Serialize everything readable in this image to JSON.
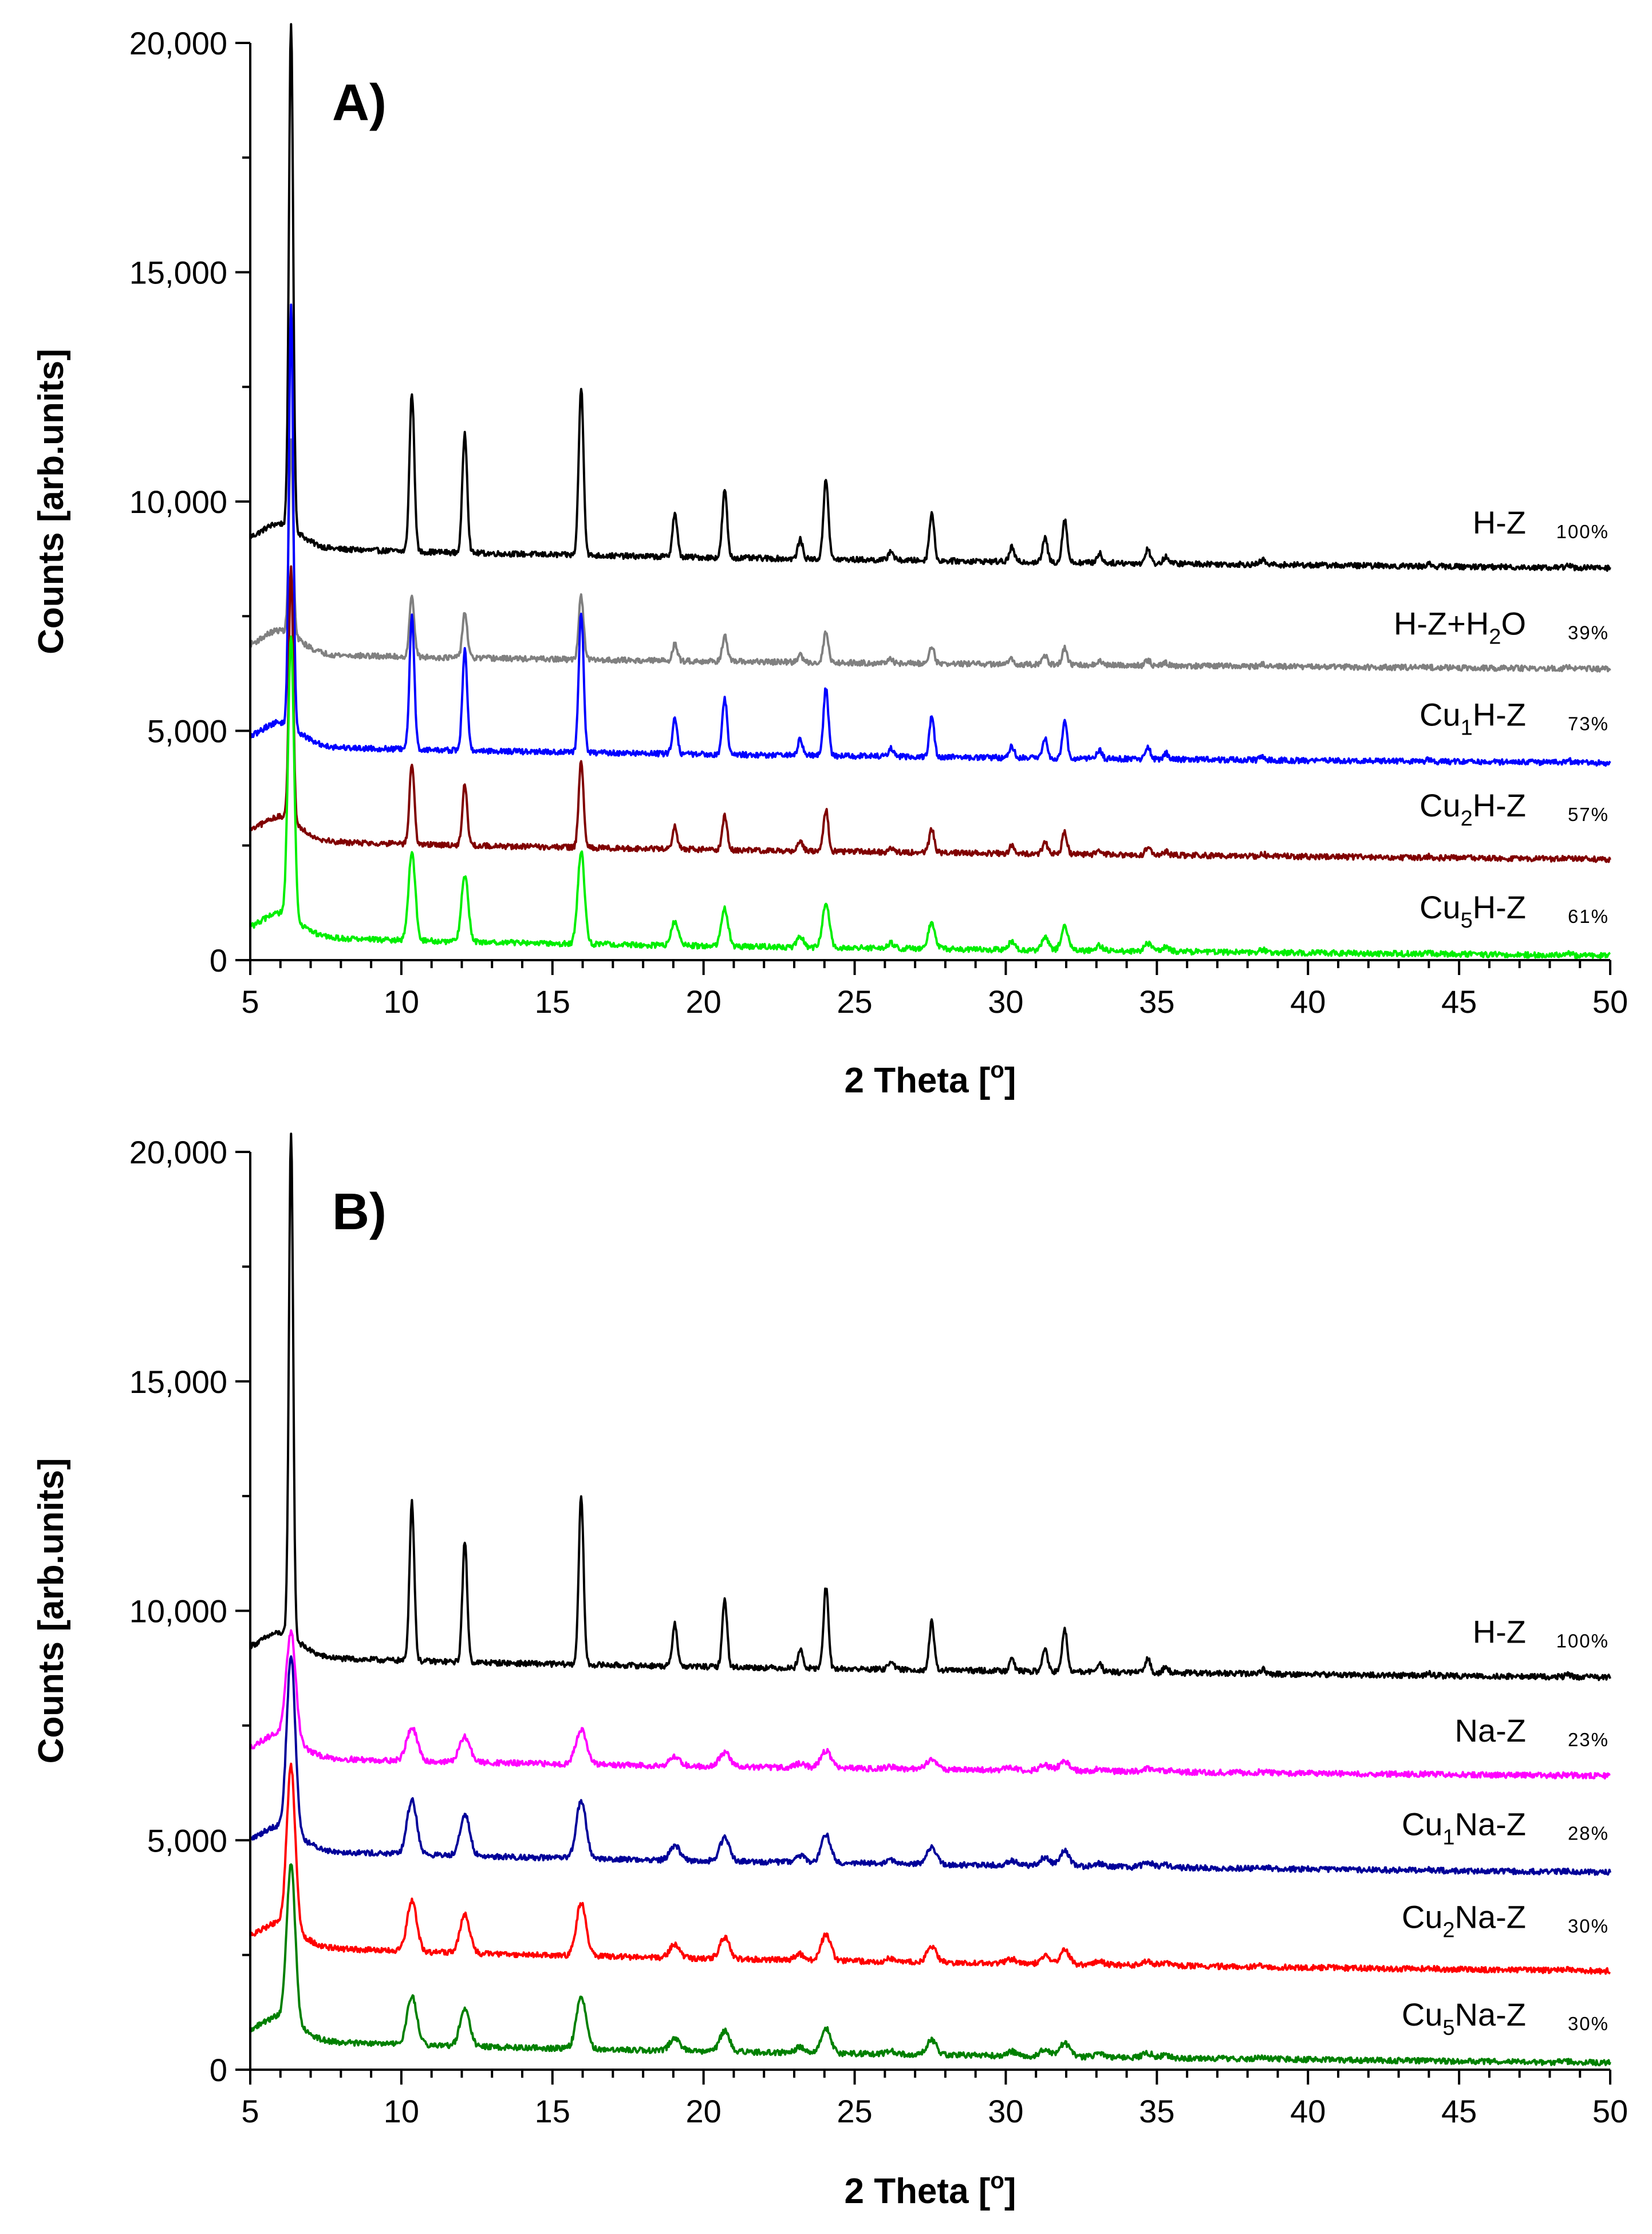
{
  "chart_data": [
    {
      "type": "line",
      "panel_label": "A)",
      "xlabel_main": "2 Theta [",
      "xlabel_sup": "o",
      "xlabel_end": "]",
      "ylabel": "Counts [arb.units]",
      "xlim": [
        5,
        50
      ],
      "ylim": [
        0,
        20000
      ],
      "x_ticks": [
        "5",
        "10",
        "15",
        "20",
        "25",
        "30",
        "35",
        "40",
        "45",
        "50"
      ],
      "y_ticks": [
        "0",
        "5,000",
        "10,000",
        "15,000",
        "20,000"
      ],
      "peaks": [
        {
          "x": 6.35,
          "rel": 1.0,
          "w": 0.07
        },
        {
          "x": 10.35,
          "rel": 0.33,
          "w": 0.08
        },
        {
          "x": 12.1,
          "rel": 0.25,
          "w": 0.08
        },
        {
          "x": 15.95,
          "rel": 0.35,
          "w": 0.08
        },
        {
          "x": 19.05,
          "rel": 0.09,
          "w": 0.08
        },
        {
          "x": 20.7,
          "rel": 0.14,
          "w": 0.08
        },
        {
          "x": 23.2,
          "rel": 0.04,
          "w": 0.08
        },
        {
          "x": 24.05,
          "rel": 0.17,
          "w": 0.08
        },
        {
          "x": 26.2,
          "rel": 0.02,
          "w": 0.08
        },
        {
          "x": 27.55,
          "rel": 0.1,
          "w": 0.08
        },
        {
          "x": 30.2,
          "rel": 0.03,
          "w": 0.08
        },
        {
          "x": 31.3,
          "rel": 0.05,
          "w": 0.08
        },
        {
          "x": 31.95,
          "rel": 0.09,
          "w": 0.08
        },
        {
          "x": 33.1,
          "rel": 0.02,
          "w": 0.08
        },
        {
          "x": 34.7,
          "rel": 0.03,
          "w": 0.08
        },
        {
          "x": 35.3,
          "rel": 0.015,
          "w": 0.08
        },
        {
          "x": 38.5,
          "rel": 0.01,
          "w": 0.08
        },
        {
          "x": 44.0,
          "rel": 0.005,
          "w": 0.08
        },
        {
          "x": 48.6,
          "rel": 0.007,
          "w": 0.08
        }
      ],
      "series": [
        {
          "name_main": "H-Z",
          "name_sub": "",
          "name_end": "",
          "name_suffix": "",
          "pct": "100%",
          "color": "#000000",
          "baseline_start": 9100,
          "baseline_end": 8550,
          "peak_height": 11000,
          "peak_broad": 1.0
        },
        {
          "name_main": "H-Z+H",
          "name_sub": "2",
          "name_end": "O",
          "name_suffix": "",
          "pct": "39%",
          "color": "#808080",
          "baseline_start": 6750,
          "baseline_end": 6350,
          "peak_height": 4200,
          "peak_broad": 1.0
        },
        {
          "name_main": "Cu",
          "name_sub": "1",
          "name_end": "H-Z",
          "name_suffix": "",
          "pct": "73%",
          "color": "#0000ff",
          "baseline_start": 4750,
          "baseline_end": 4300,
          "peak_height": 9200,
          "peak_broad": 1.0
        },
        {
          "name_main": "Cu",
          "name_sub": "2",
          "name_end": "H-Z",
          "name_suffix": "",
          "pct": "57%",
          "color": "#800000",
          "baseline_start": 2700,
          "baseline_end": 2200,
          "peak_height": 5600,
          "peak_broad": 1.0
        },
        {
          "name_main": "Cu",
          "name_sub": "5",
          "name_end": "H-Z",
          "name_suffix": "",
          "pct": "61%",
          "color": "#00ee00",
          "baseline_start": 600,
          "baseline_end": 100,
          "peak_height": 6100,
          "peak_broad": 1.4
        }
      ]
    },
    {
      "type": "line",
      "panel_label": "B)",
      "xlabel_main": "2 Theta [",
      "xlabel_sup": "o",
      "xlabel_end": "]",
      "ylabel": "Counts [arb.units]",
      "xlim": [
        5,
        50
      ],
      "ylim": [
        0,
        20000
      ],
      "x_ticks": [
        "5",
        "10",
        "15",
        "20",
        "25",
        "30",
        "35",
        "40",
        "45",
        "50"
      ],
      "y_ticks": [
        "0",
        "5,000",
        "10,000",
        "15,000",
        "20,000"
      ],
      "peaks": [
        {
          "x": 6.35,
          "rel": 1.0,
          "w": 0.07
        },
        {
          "x": 10.35,
          "rel": 0.33,
          "w": 0.08
        },
        {
          "x": 12.1,
          "rel": 0.25,
          "w": 0.08
        },
        {
          "x": 15.95,
          "rel": 0.35,
          "w": 0.08
        },
        {
          "x": 19.05,
          "rel": 0.09,
          "w": 0.08
        },
        {
          "x": 20.7,
          "rel": 0.14,
          "w": 0.08
        },
        {
          "x": 23.2,
          "rel": 0.04,
          "w": 0.08
        },
        {
          "x": 24.05,
          "rel": 0.17,
          "w": 0.08
        },
        {
          "x": 26.2,
          "rel": 0.02,
          "w": 0.08
        },
        {
          "x": 27.55,
          "rel": 0.1,
          "w": 0.08
        },
        {
          "x": 30.2,
          "rel": 0.03,
          "w": 0.08
        },
        {
          "x": 31.3,
          "rel": 0.05,
          "w": 0.08
        },
        {
          "x": 31.95,
          "rel": 0.09,
          "w": 0.08
        },
        {
          "x": 33.1,
          "rel": 0.02,
          "w": 0.08
        },
        {
          "x": 34.7,
          "rel": 0.03,
          "w": 0.08
        },
        {
          "x": 35.3,
          "rel": 0.015,
          "w": 0.08
        },
        {
          "x": 38.5,
          "rel": 0.01,
          "w": 0.08
        },
        {
          "x": 44.0,
          "rel": 0.005,
          "w": 0.08
        },
        {
          "x": 48.6,
          "rel": 0.007,
          "w": 0.08
        }
      ],
      "series": [
        {
          "name_main": "H-Z",
          "name_sub": "",
          "name_end": "",
          "name_suffix": "",
          "pct": "100%",
          "color": "#000000",
          "baseline_start": 9100,
          "baseline_end": 8550,
          "peak_height": 11000,
          "peak_broad": 1.0
        },
        {
          "name_main": "Na-Z",
          "name_sub": "",
          "name_end": "",
          "name_suffix": "",
          "pct": "23%",
          "color": "#ff00ff",
          "baseline_start": 6900,
          "baseline_end": 6400,
          "peak_height": 2300,
          "peak_broad": 2.2
        },
        {
          "name_main": "Cu",
          "name_sub": "1",
          "name_end": "Na-Z",
          "name_suffix": "",
          "pct": "28%",
          "color": "#000099",
          "baseline_start": 4900,
          "baseline_end": 4300,
          "peak_height": 3800,
          "peak_broad": 2.0
        },
        {
          "name_main": "Cu",
          "name_sub": "2",
          "name_end": "Na-Z",
          "name_suffix": "",
          "pct": "30%",
          "color": "#ff0000",
          "baseline_start": 2800,
          "baseline_end": 2150,
          "peak_height": 3500,
          "peak_broad": 2.0
        },
        {
          "name_main": "Cu",
          "name_sub": "5",
          "name_end": "Na-Z",
          "name_suffix": "",
          "pct": "30%",
          "color": "#008000",
          "baseline_start": 750,
          "baseline_end": 150,
          "peak_height": 3400,
          "peak_broad": 2.0
        }
      ]
    }
  ]
}
